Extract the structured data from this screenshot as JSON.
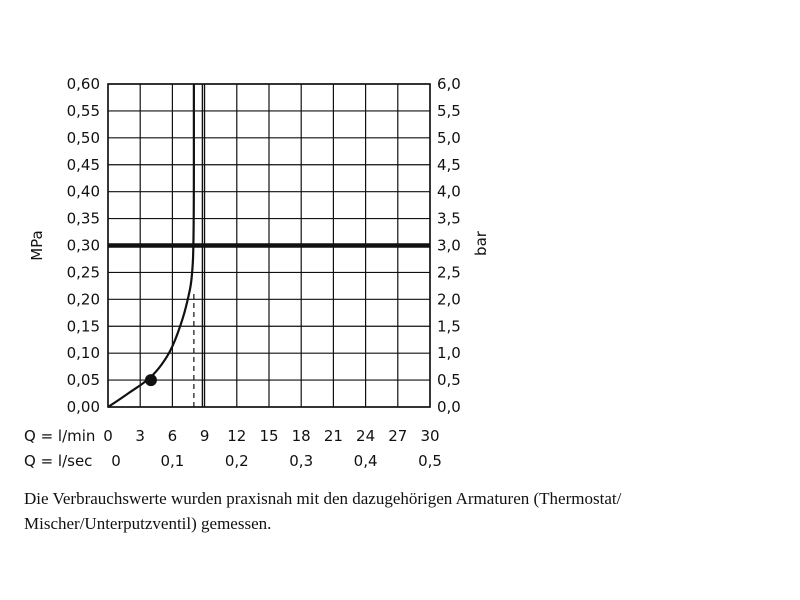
{
  "chart_data": {
    "type": "line",
    "y_left": {
      "label": "MPa",
      "ticks": [
        "0,00",
        "0,05",
        "0,10",
        "0,15",
        "0,20",
        "0,25",
        "0,30",
        "0,35",
        "0,40",
        "0,45",
        "0,50",
        "0,55",
        "0,60"
      ],
      "range": [
        0,
        0.6
      ]
    },
    "y_right": {
      "label": "bar",
      "ticks": [
        "0,0",
        "0,5",
        "1,0",
        "1,5",
        "2,0",
        "2,5",
        "3,0",
        "3,5",
        "4,0",
        "4,5",
        "5,0",
        "5,5",
        "6,0"
      ],
      "range": [
        0,
        6.0
      ]
    },
    "x_lmin": {
      "label": "Q = l/min",
      "ticks": [
        "0",
        "3",
        "6",
        "9",
        "12",
        "15",
        "18",
        "21",
        "24",
        "27",
        "30"
      ],
      "range": [
        0,
        30
      ]
    },
    "x_lsec": {
      "label": "Q = l/sec",
      "ticks": [
        "0",
        "0,1",
        "0,2",
        "0,3",
        "0,4",
        "0,5"
      ]
    },
    "grid": true,
    "series": [
      {
        "name": "",
        "x": [
          0,
          1,
          2,
          3,
          4,
          5,
          6,
          7,
          7.5,
          7.8,
          8.0,
          8.0
        ],
        "y": [
          0,
          0.013,
          0.027,
          0.04,
          0.055,
          0.078,
          0.11,
          0.165,
          0.205,
          0.235,
          0.3,
          0.6
        ]
      }
    ],
    "marker": {
      "x": 4,
      "y": 0.05
    },
    "reference_line_y": 0.3,
    "vertical_line_x": 8.8,
    "dashed_line": {
      "x": 8.0,
      "y_from": 0,
      "y_to": 0.21
    }
  },
  "caption": "Die Verbrauchswerte wurden praxisnah mit den dazugehörigen Armaturen (Thermostat/\nMischer/Unterputzventil) gemessen."
}
